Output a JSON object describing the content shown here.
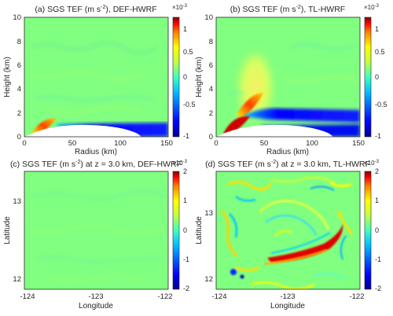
{
  "colormap": [
    "#00008f",
    "#0000ff",
    "#00bfff",
    "#40ffbf",
    "#c0ff40",
    "#ffff00",
    "#ff8000",
    "#ff0000",
    "#800000"
  ],
  "background_color": "#80ff80",
  "chart_data": [
    {
      "type": "heatmap",
      "panel": "a",
      "title": "(a) SGS TEF (m s",
      "title_sup": "-2",
      "title_tail": "), DEF-HWRF",
      "xlabel": "Radius (km)",
      "ylabel": "Height (km)",
      "xlim": [
        0,
        150
      ],
      "ylim": [
        0,
        10
      ],
      "xticks": [
        "0",
        "50",
        "100",
        "150"
      ],
      "yticks": [
        "0",
        "2",
        "4",
        "6",
        "8",
        "10"
      ],
      "colorbar": {
        "clim": [
          -0.001,
          0.001
        ],
        "ticks": [
          "1",
          "0.5",
          "0",
          "-0.5",
          "-1"
        ],
        "exponent_base": "×10",
        "exponent": "-3"
      },
      "features": [
        {
          "kind": "terrain_mask",
          "color": "#ffffff",
          "x": [
            0,
            10,
            30,
            50,
            70,
            90,
            110,
            120
          ],
          "y": [
            0,
            0.05,
            0.4,
            0.85,
            0.9,
            0.75,
            0.4,
            0
          ]
        },
        {
          "kind": "band",
          "label": "positive near-surface maximum",
          "x": [
            20,
            45
          ],
          "y": [
            0.6,
            1.3
          ],
          "value": 0.00085
        },
        {
          "kind": "band",
          "label": "negative boundary layer",
          "x": [
            40,
            150
          ],
          "y": [
            0.1,
            0.9
          ],
          "value": -0.0009
        }
      ]
    },
    {
      "type": "heatmap",
      "panel": "b",
      "title": "(b) SGS TEF (m s",
      "title_sup": "-2",
      "title_tail": "), TL-HWRF",
      "xlabel": "Radius (km)",
      "ylabel": "Height (km)",
      "xlim": [
        0,
        150
      ],
      "ylim": [
        0,
        10
      ],
      "xticks": [
        "0",
        "50",
        "100",
        "150"
      ],
      "yticks": [
        "0",
        "2",
        "4",
        "6",
        "8",
        "10"
      ],
      "colorbar": {
        "clim": [
          -0.001,
          0.001
        ],
        "ticks": [
          "1",
          "0.5",
          "0",
          "-0.5",
          "-1"
        ],
        "exponent_base": "×10",
        "exponent": "-3"
      },
      "features": [
        {
          "kind": "terrain_mask",
          "color": "#ffffff",
          "x": [
            0,
            10,
            30,
            50,
            70,
            90,
            110,
            120
          ],
          "y": [
            0,
            0.05,
            0.4,
            0.85,
            0.9,
            0.75,
            0.4,
            0
          ]
        },
        {
          "kind": "band",
          "label": "strong positive maximum",
          "x": [
            10,
            40
          ],
          "y": [
            0.5,
            2.8
          ],
          "value": 0.001
        },
        {
          "kind": "band",
          "label": "negative layer",
          "x": [
            30,
            150
          ],
          "y": [
            1.0,
            2.4
          ],
          "value": -0.0009
        },
        {
          "kind": "plume",
          "label": "weak positive plume",
          "x": [
            30,
            90
          ],
          "y": [
            2.5,
            9.0
          ],
          "value": 0.0003
        }
      ]
    },
    {
      "type": "heatmap",
      "panel": "c",
      "title": "(c) SGS TEF (m s",
      "title_sup": "-2",
      "title_tail": ") at z = 3.0 km, DEF-HWRF",
      "xlabel": "Longitude",
      "ylabel": "Latitude",
      "xlim": [
        -124,
        -122
      ],
      "ylim": [
        11.85,
        13.95
      ],
      "xticks": [
        "-124",
        "-123",
        "-122"
      ],
      "yticks": [
        "12",
        "13"
      ],
      "colorbar": {
        "clim": [
          -0.002,
          0.002
        ],
        "ticks": [
          "2",
          "1",
          "0",
          "-1",
          "-2"
        ],
        "exponent_base": "×10",
        "exponent": "-3"
      },
      "features": [
        {
          "kind": "field",
          "label": "near-zero everywhere",
          "value": 0.0
        }
      ]
    },
    {
      "type": "heatmap",
      "panel": "d",
      "title": "(d) SGS TEF (m s",
      "title_sup": "-2",
      "title_tail": ") at z = 3.0 km, TL-HWRF",
      "xlabel": "Longitude",
      "ylabel": "Latitude",
      "xlim": [
        -124,
        -122
      ],
      "ylim": [
        11.85,
        13.95
      ],
      "xticks": [
        "-124",
        "-123",
        "-122"
      ],
      "yticks": [
        "12",
        "13"
      ],
      "colorbar": {
        "clim": [
          -0.002,
          0.002
        ],
        "ticks": [
          "2",
          "1",
          "0",
          "-1",
          "-2"
        ],
        "exponent_base": "×10",
        "exponent": "-3"
      },
      "features": [
        {
          "kind": "spiral_band",
          "label": "positive rainband",
          "lon": [
            -123.35,
            -122.55
          ],
          "lat": [
            12.25,
            12.85
          ],
          "value": 0.0018
        },
        {
          "kind": "eddies",
          "label": "scattered positive and negative eddies",
          "value": 0.0008
        }
      ]
    }
  ]
}
